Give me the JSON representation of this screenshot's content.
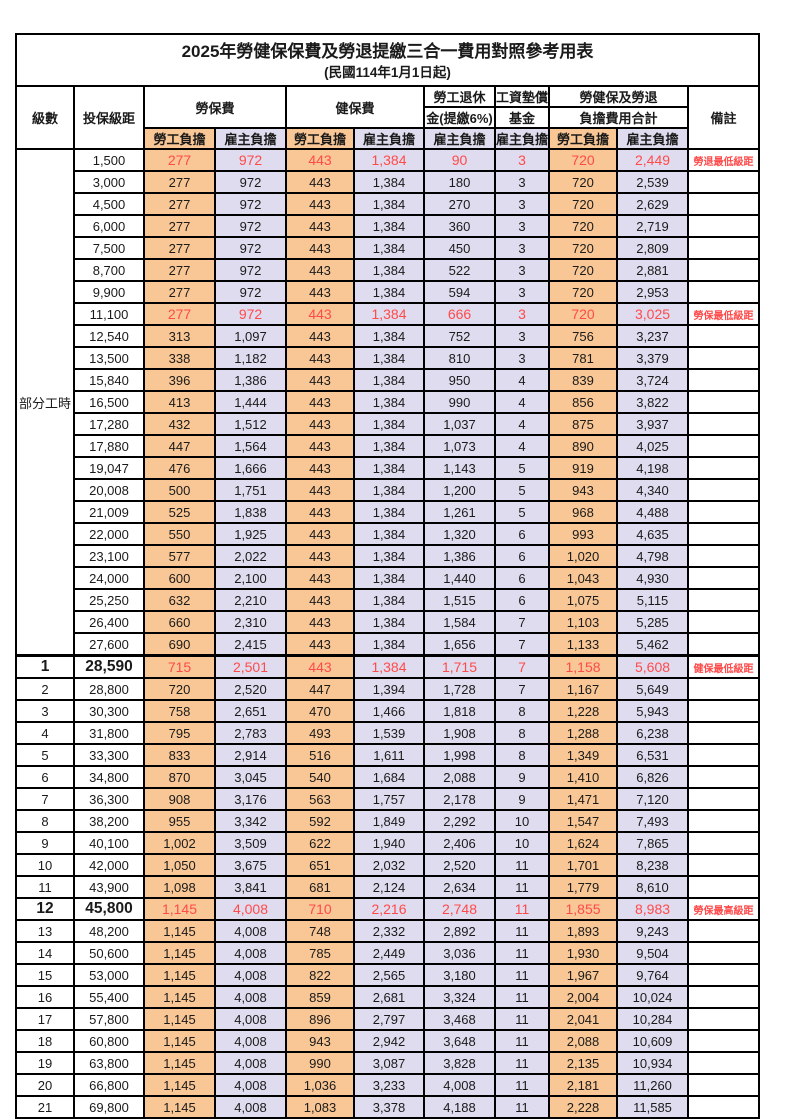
{
  "title": "2025年勞健保保費及勞退提繳三合一費用對照參考用表",
  "subtitle": "(民國114年1月1日起)",
  "colors": {
    "labor_share_bg": "#F9C795",
    "employer_share_bg": "#E0DCEF",
    "highlight_red": "#FF4A4A",
    "border": "#000000"
  },
  "header": {
    "level": "級數",
    "bracket": "投保級距",
    "labor_insurance": "勞保費",
    "health_insurance": "健保費",
    "pension_line1": "勞工退休",
    "pension_line2": "金(提繳6%)",
    "wage_fund_line1": "工資墊償",
    "wage_fund_line2": "基金",
    "total_line1": "勞健保及勞退",
    "total_line2": "負擔費用合計",
    "remark": "備註",
    "labor_share": "勞工負擔",
    "employer_share": "雇主負擔"
  },
  "part_time_label": "部分工時",
  "rows": [
    {
      "bracket": "1,500",
      "v": [
        "277",
        "972",
        "443",
        "1,384",
        "90",
        "3",
        "720",
        "2,449"
      ],
      "note": "勞退最低級距",
      "hl": true
    },
    {
      "bracket": "3,000",
      "v": [
        "277",
        "972",
        "443",
        "1,384",
        "180",
        "3",
        "720",
        "2,539"
      ],
      "note": ""
    },
    {
      "bracket": "4,500",
      "v": [
        "277",
        "972",
        "443",
        "1,384",
        "270",
        "3",
        "720",
        "2,629"
      ],
      "note": ""
    },
    {
      "bracket": "6,000",
      "v": [
        "277",
        "972",
        "443",
        "1,384",
        "360",
        "3",
        "720",
        "2,719"
      ],
      "note": ""
    },
    {
      "bracket": "7,500",
      "v": [
        "277",
        "972",
        "443",
        "1,384",
        "450",
        "3",
        "720",
        "2,809"
      ],
      "note": ""
    },
    {
      "bracket": "8,700",
      "v": [
        "277",
        "972",
        "443",
        "1,384",
        "522",
        "3",
        "720",
        "2,881"
      ],
      "note": ""
    },
    {
      "bracket": "9,900",
      "v": [
        "277",
        "972",
        "443",
        "1,384",
        "594",
        "3",
        "720",
        "2,953"
      ],
      "note": ""
    },
    {
      "bracket": "11,100",
      "v": [
        "277",
        "972",
        "443",
        "1,384",
        "666",
        "3",
        "720",
        "3,025"
      ],
      "note": "勞保最低級距",
      "hl": true
    },
    {
      "bracket": "12,540",
      "v": [
        "313",
        "1,097",
        "443",
        "1,384",
        "752",
        "3",
        "756",
        "3,237"
      ],
      "note": ""
    },
    {
      "bracket": "13,500",
      "v": [
        "338",
        "1,182",
        "443",
        "1,384",
        "810",
        "3",
        "781",
        "3,379"
      ],
      "note": ""
    },
    {
      "bracket": "15,840",
      "v": [
        "396",
        "1,386",
        "443",
        "1,384",
        "950",
        "4",
        "839",
        "3,724"
      ],
      "note": ""
    },
    {
      "bracket": "16,500",
      "v": [
        "413",
        "1,444",
        "443",
        "1,384",
        "990",
        "4",
        "856",
        "3,822"
      ],
      "note": ""
    },
    {
      "bracket": "17,280",
      "v": [
        "432",
        "1,512",
        "443",
        "1,384",
        "1,037",
        "4",
        "875",
        "3,937"
      ],
      "note": ""
    },
    {
      "bracket": "17,880",
      "v": [
        "447",
        "1,564",
        "443",
        "1,384",
        "1,073",
        "4",
        "890",
        "4,025"
      ],
      "note": ""
    },
    {
      "bracket": "19,047",
      "v": [
        "476",
        "1,666",
        "443",
        "1,384",
        "1,143",
        "5",
        "919",
        "4,198"
      ],
      "note": ""
    },
    {
      "bracket": "20,008",
      "v": [
        "500",
        "1,751",
        "443",
        "1,384",
        "1,200",
        "5",
        "943",
        "4,340"
      ],
      "note": ""
    },
    {
      "bracket": "21,009",
      "v": [
        "525",
        "1,838",
        "443",
        "1,384",
        "1,261",
        "5",
        "968",
        "4,488"
      ],
      "note": ""
    },
    {
      "bracket": "22,000",
      "v": [
        "550",
        "1,925",
        "443",
        "1,384",
        "1,320",
        "6",
        "993",
        "4,635"
      ],
      "note": ""
    },
    {
      "bracket": "23,100",
      "v": [
        "577",
        "2,022",
        "443",
        "1,384",
        "1,386",
        "6",
        "1,020",
        "4,798"
      ],
      "note": ""
    },
    {
      "bracket": "24,000",
      "v": [
        "600",
        "2,100",
        "443",
        "1,384",
        "1,440",
        "6",
        "1,043",
        "4,930"
      ],
      "note": ""
    },
    {
      "bracket": "25,250",
      "v": [
        "632",
        "2,210",
        "443",
        "1,384",
        "1,515",
        "6",
        "1,075",
        "5,115"
      ],
      "note": ""
    },
    {
      "bracket": "26,400",
      "v": [
        "660",
        "2,310",
        "443",
        "1,384",
        "1,584",
        "7",
        "1,103",
        "5,285"
      ],
      "note": ""
    },
    {
      "bracket": "27,600",
      "v": [
        "690",
        "2,415",
        "443",
        "1,384",
        "1,656",
        "7",
        "1,133",
        "5,462"
      ],
      "note": ""
    },
    {
      "level": "1",
      "bracket": "28,590",
      "v": [
        "715",
        "2,501",
        "443",
        "1,384",
        "1,715",
        "7",
        "1,158",
        "5,608"
      ],
      "note": "健保最低級距",
      "hl": true,
      "em": true,
      "thick": true
    },
    {
      "level": "2",
      "bracket": "28,800",
      "v": [
        "720",
        "2,520",
        "447",
        "1,394",
        "1,728",
        "7",
        "1,167",
        "5,649"
      ],
      "note": ""
    },
    {
      "level": "3",
      "bracket": "30,300",
      "v": [
        "758",
        "2,651",
        "470",
        "1,466",
        "1,818",
        "8",
        "1,228",
        "5,943"
      ],
      "note": ""
    },
    {
      "level": "4",
      "bracket": "31,800",
      "v": [
        "795",
        "2,783",
        "493",
        "1,539",
        "1,908",
        "8",
        "1,288",
        "6,238"
      ],
      "note": ""
    },
    {
      "level": "5",
      "bracket": "33,300",
      "v": [
        "833",
        "2,914",
        "516",
        "1,611",
        "1,998",
        "8",
        "1,349",
        "6,531"
      ],
      "note": ""
    },
    {
      "level": "6",
      "bracket": "34,800",
      "v": [
        "870",
        "3,045",
        "540",
        "1,684",
        "2,088",
        "9",
        "1,410",
        "6,826"
      ],
      "note": ""
    },
    {
      "level": "7",
      "bracket": "36,300",
      "v": [
        "908",
        "3,176",
        "563",
        "1,757",
        "2,178",
        "9",
        "1,471",
        "7,120"
      ],
      "note": ""
    },
    {
      "level": "8",
      "bracket": "38,200",
      "v": [
        "955",
        "3,342",
        "592",
        "1,849",
        "2,292",
        "10",
        "1,547",
        "7,493"
      ],
      "note": ""
    },
    {
      "level": "9",
      "bracket": "40,100",
      "v": [
        "1,002",
        "3,509",
        "622",
        "1,940",
        "2,406",
        "10",
        "1,624",
        "7,865"
      ],
      "note": ""
    },
    {
      "level": "10",
      "bracket": "42,000",
      "v": [
        "1,050",
        "3,675",
        "651",
        "2,032",
        "2,520",
        "11",
        "1,701",
        "8,238"
      ],
      "note": ""
    },
    {
      "level": "11",
      "bracket": "43,900",
      "v": [
        "1,098",
        "3,841",
        "681",
        "2,124",
        "2,634",
        "11",
        "1,779",
        "8,610"
      ],
      "note": ""
    },
    {
      "level": "12",
      "bracket": "45,800",
      "v": [
        "1,145",
        "4,008",
        "710",
        "2,216",
        "2,748",
        "11",
        "1,855",
        "8,983"
      ],
      "note": "勞保最高級距",
      "hl": true,
      "em": true
    },
    {
      "level": "13",
      "bracket": "48,200",
      "v": [
        "1,145",
        "4,008",
        "748",
        "2,332",
        "2,892",
        "11",
        "1,893",
        "9,243"
      ],
      "note": ""
    },
    {
      "level": "14",
      "bracket": "50,600",
      "v": [
        "1,145",
        "4,008",
        "785",
        "2,449",
        "3,036",
        "11",
        "1,930",
        "9,504"
      ],
      "note": ""
    },
    {
      "level": "15",
      "bracket": "53,000",
      "v": [
        "1,145",
        "4,008",
        "822",
        "2,565",
        "3,180",
        "11",
        "1,967",
        "9,764"
      ],
      "note": ""
    },
    {
      "level": "16",
      "bracket": "55,400",
      "v": [
        "1,145",
        "4,008",
        "859",
        "2,681",
        "3,324",
        "11",
        "2,004",
        "10,024"
      ],
      "note": ""
    },
    {
      "level": "17",
      "bracket": "57,800",
      "v": [
        "1,145",
        "4,008",
        "896",
        "2,797",
        "3,468",
        "11",
        "2,041",
        "10,284"
      ],
      "note": ""
    },
    {
      "level": "18",
      "bracket": "60,800",
      "v": [
        "1,145",
        "4,008",
        "943",
        "2,942",
        "3,648",
        "11",
        "2,088",
        "10,609"
      ],
      "note": ""
    },
    {
      "level": "19",
      "bracket": "63,800",
      "v": [
        "1,145",
        "4,008",
        "990",
        "3,087",
        "3,828",
        "11",
        "2,135",
        "10,934"
      ],
      "note": ""
    },
    {
      "level": "20",
      "bracket": "66,800",
      "v": [
        "1,145",
        "4,008",
        "1,036",
        "3,233",
        "4,008",
        "11",
        "2,181",
        "11,260"
      ],
      "note": ""
    },
    {
      "level": "21",
      "bracket": "69,800",
      "v": [
        "1,145",
        "4,008",
        "1,083",
        "3,378",
        "4,188",
        "11",
        "2,228",
        "11,585"
      ],
      "note": ""
    }
  ]
}
